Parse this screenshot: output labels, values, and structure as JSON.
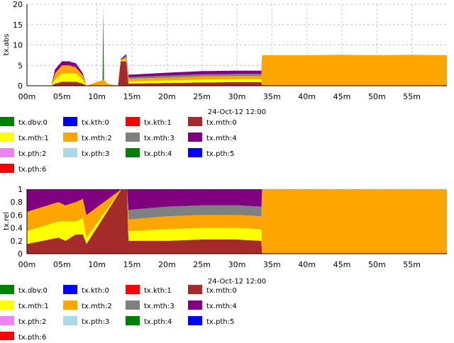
{
  "colors": {
    "tx.dbv:0": "#008000",
    "tx.kth:0": "#0000ff",
    "tx.kth:1": "#ff0000",
    "tx.mth:0": "#a52a2a",
    "tx.mth:1": "#ffff00",
    "tx.mth:2": "#ffa500",
    "tx.mth:3": "#808080",
    "tx.mth:4": "#800080",
    "tx.pth:2": "#ee82ee",
    "tx.pth:3": "#add8e6",
    "tx.pth:4": "#008000",
    "tx.pth:5": "#0000ff",
    "tx.pth:6": "#ff0000"
  },
  "chart_data": [
    {
      "type": "area",
      "stacked": true,
      "title": "",
      "xlabel": "24-Oct-12 12:00",
      "ylabel": "tx.abs",
      "xlim": [
        0,
        60
      ],
      "ylim": [
        0,
        20
      ],
      "x_ticks": [
        "00m",
        "05m",
        "10m",
        "15m",
        "20m",
        "25m",
        "30m",
        "35m",
        "40m",
        "45m",
        "50m",
        "55m"
      ],
      "y_ticks": [
        "0",
        "5",
        "10",
        "15",
        "20"
      ],
      "grid": true,
      "legend": {
        "position": "below",
        "columns": 4,
        "entries": [
          "tx.dbv:0",
          "tx.kth:0",
          "tx.kth:1",
          "tx.mth:0",
          "tx.mth:1",
          "tx.mth:2",
          "tx.mth:3",
          "tx.mth:4",
          "tx.pth:2",
          "tx.pth:3",
          "tx.pth:4",
          "tx.pth:5",
          "tx.pth:6"
        ]
      },
      "x_unit": "minutes",
      "series": [
        {
          "name": "tx.mth:0",
          "points": [
            [
              0,
              0
            ],
            [
              3.5,
              0
            ],
            [
              4,
              0.5
            ],
            [
              5,
              1
            ],
            [
              6,
              1
            ],
            [
              7,
              1
            ],
            [
              8,
              0.5
            ],
            [
              8.5,
              0
            ],
            [
              10,
              0
            ],
            [
              11,
              0
            ],
            [
              13,
              0
            ],
            [
              13.4,
              6
            ],
            [
              14.2,
              6
            ],
            [
              14.5,
              0.5
            ],
            [
              20,
              0.7
            ],
            [
              25,
              0.8
            ],
            [
              30,
              0.9
            ],
            [
              33.5,
              0.9
            ],
            [
              33.6,
              0
            ],
            [
              60,
              0
            ]
          ]
        },
        {
          "name": "tx.mth:1",
          "points": [
            [
              0,
              0
            ],
            [
              3.5,
              0
            ],
            [
              4,
              1
            ],
            [
              5,
              2
            ],
            [
              6,
              2
            ],
            [
              7,
              2
            ],
            [
              8,
              1
            ],
            [
              8.5,
              0
            ],
            [
              13,
              0
            ],
            [
              14.5,
              0.6
            ],
            [
              20,
              0.6
            ],
            [
              25,
              0.7
            ],
            [
              30,
              0.7
            ],
            [
              33.5,
              0.7
            ],
            [
              33.6,
              0
            ],
            [
              60,
              0
            ]
          ]
        },
        {
          "name": "tx.mth:2",
          "points": [
            [
              0,
              0
            ],
            [
              3.5,
              0
            ],
            [
              4,
              1.5
            ],
            [
              5,
              2
            ],
            [
              6,
              2
            ],
            [
              7,
              1.5
            ],
            [
              8,
              1
            ],
            [
              8.5,
              0
            ],
            [
              11,
              1.5
            ],
            [
              11.5,
              0.5
            ],
            [
              13,
              0
            ],
            [
              14.5,
              0.6
            ],
            [
              20,
              0.7
            ],
            [
              25,
              0.8
            ],
            [
              30,
              0.8
            ],
            [
              33.5,
              0.8
            ],
            [
              33.6,
              7.5
            ],
            [
              40,
              7.5
            ],
            [
              45,
              7.6
            ],
            [
              50,
              7.5
            ],
            [
              55,
              7.6
            ],
            [
              60,
              7.5
            ]
          ]
        },
        {
          "name": "tx.mth:3",
          "points": [
            [
              0,
              0
            ],
            [
              13,
              0
            ],
            [
              14.5,
              0.4
            ],
            [
              20,
              0.5
            ],
            [
              25,
              0.5
            ],
            [
              30,
              0.5
            ],
            [
              33.5,
              0.5
            ],
            [
              33.6,
              0
            ],
            [
              60,
              0
            ]
          ]
        },
        {
          "name": "tx.mth:4",
          "points": [
            [
              0,
              0
            ],
            [
              3.5,
              0
            ],
            [
              4,
              1
            ],
            [
              5,
              1
            ],
            [
              6,
              1
            ],
            [
              7,
              1
            ],
            [
              8,
              0.5
            ],
            [
              8.5,
              0
            ],
            [
              13,
              0
            ],
            [
              14.5,
              0.6
            ],
            [
              20,
              0.7
            ],
            [
              25,
              0.8
            ],
            [
              30,
              0.8
            ],
            [
              33.5,
              0.8
            ],
            [
              33.6,
              0
            ],
            [
              60,
              0
            ]
          ]
        },
        {
          "name": "tx.dbv:0",
          "points": [
            [
              0,
              0
            ],
            [
              10.8,
              0
            ],
            [
              10.9,
              18
            ],
            [
              11.0,
              0
            ],
            [
              60,
              0
            ]
          ]
        }
      ]
    },
    {
      "type": "area",
      "stacked": true,
      "title": "",
      "xlabel": "24-Oct-12 12:00",
      "ylabel": "tx.rel",
      "xlim": [
        0,
        60
      ],
      "ylim": [
        0,
        1
      ],
      "x_ticks": [
        "00m",
        "05m",
        "10m",
        "15m",
        "20m",
        "25m",
        "30m",
        "35m",
        "40m",
        "45m",
        "50m",
        "55m"
      ],
      "y_ticks": [
        "0",
        "0.2",
        "0.4",
        "0.6",
        "0.8",
        "1"
      ],
      "grid": true,
      "legend": {
        "position": "below",
        "columns": 4,
        "entries": [
          "tx.dbv:0",
          "tx.kth:0",
          "tx.kth:1",
          "tx.mth:0",
          "tx.mth:1",
          "tx.mth:2",
          "tx.mth:3",
          "tx.mth:4",
          "tx.pth:2",
          "tx.pth:3",
          "tx.pth:4",
          "tx.pth:5",
          "tx.pth:6"
        ]
      },
      "x_unit": "minutes",
      "series": [
        {
          "name": "tx.mth:0",
          "points": [
            [
              0,
              0.15
            ],
            [
              4.5,
              0.25
            ],
            [
              5.5,
              0.2
            ],
            [
              7,
              0.3
            ],
            [
              8,
              0.3
            ],
            [
              8.5,
              0.15
            ],
            [
              13.5,
              1
            ],
            [
              14.3,
              1
            ],
            [
              14.5,
              0.2
            ],
            [
              20,
              0.2
            ],
            [
              25,
              0.22
            ],
            [
              30,
              0.22
            ],
            [
              33.5,
              0.2
            ],
            [
              33.6,
              0
            ],
            [
              60,
              0
            ]
          ]
        },
        {
          "name": "tx.mth:1",
          "points": [
            [
              0,
              0.2
            ],
            [
              4.5,
              0.25
            ],
            [
              5.5,
              0.3
            ],
            [
              7,
              0.2
            ],
            [
              8,
              0.25
            ],
            [
              8.5,
              0.1
            ],
            [
              13.5,
              0
            ],
            [
              14.3,
              0
            ],
            [
              14.5,
              0.15
            ],
            [
              20,
              0.18
            ],
            [
              25,
              0.18
            ],
            [
              30,
              0.18
            ],
            [
              33.5,
              0.18
            ],
            [
              33.6,
              0
            ],
            [
              60,
              0
            ]
          ]
        },
        {
          "name": "tx.mth:2",
          "points": [
            [
              0,
              0.3
            ],
            [
              4.5,
              0.3
            ],
            [
              5.5,
              0.25
            ],
            [
              7,
              0.3
            ],
            [
              8,
              0.3
            ],
            [
              8.5,
              0.35
            ],
            [
              13.5,
              0
            ],
            [
              14.3,
              0
            ],
            [
              14.5,
              0.18
            ],
            [
              20,
              0.2
            ],
            [
              25,
              0.2
            ],
            [
              30,
              0.2
            ],
            [
              33.5,
              0.2
            ],
            [
              33.6,
              1
            ],
            [
              60,
              1
            ]
          ]
        },
        {
          "name": "tx.mth:3",
          "points": [
            [
              0,
              0
            ],
            [
              14.3,
              0
            ],
            [
              14.5,
              0.15
            ],
            [
              20,
              0.15
            ],
            [
              25,
              0.15
            ],
            [
              30,
              0.15
            ],
            [
              33.5,
              0.15
            ],
            [
              33.6,
              0
            ],
            [
              60,
              0
            ]
          ]
        },
        {
          "name": "tx.mth:4",
          "points": [
            [
              0,
              0.35
            ],
            [
              4.5,
              0.2
            ],
            [
              5.5,
              0.25
            ],
            [
              7,
              0.2
            ],
            [
              8,
              0.15
            ],
            [
              8.5,
              0.4
            ],
            [
              13.5,
              0
            ],
            [
              14.3,
              0
            ],
            [
              14.5,
              0.32
            ],
            [
              20,
              0.27
            ],
            [
              25,
              0.25
            ],
            [
              30,
              0.25
            ],
            [
              33.5,
              0.27
            ],
            [
              33.6,
              0
            ],
            [
              60,
              0
            ]
          ]
        }
      ]
    }
  ]
}
